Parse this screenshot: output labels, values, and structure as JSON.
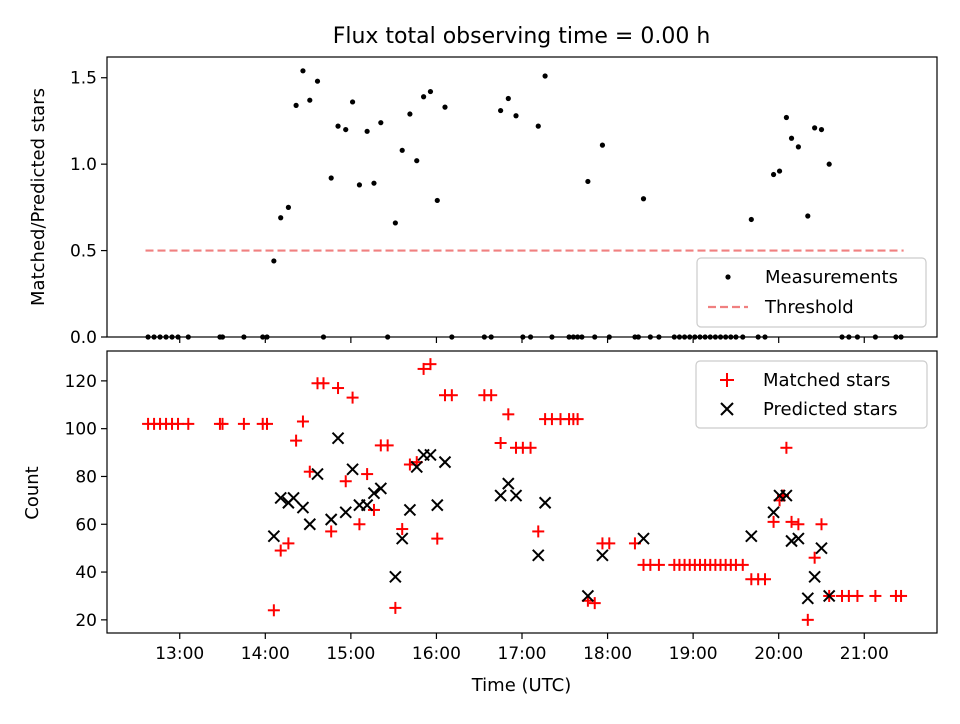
{
  "title": "Flux total observing time = 0.00 h",
  "colors": {
    "measurements": "#000000",
    "threshold": "#f08080",
    "matched": "#ff0000",
    "predicted": "#000000"
  },
  "chart_data": [
    {
      "type": "scatter",
      "panel": "top",
      "ylabel": "Matched/Predicted stars",
      "ylim": [
        0,
        1.62
      ],
      "yticks": [
        0.0,
        0.5,
        1.0,
        1.5
      ],
      "ytick_labels": [
        "0.0",
        "0.5",
        "1.0",
        "1.5"
      ],
      "xlim": [
        12.15,
        21.85
      ],
      "x_unit": "hour (UTC)",
      "grid": false,
      "legend": {
        "placement": "lower-right",
        "entries": [
          "Measurements",
          "Threshold"
        ]
      },
      "series": [
        {
          "name": "Measurements",
          "marker": "dot",
          "points": [
            [
              12.63,
              0
            ],
            [
              12.7,
              0
            ],
            [
              12.77,
              0
            ],
            [
              12.84,
              0
            ],
            [
              12.91,
              0
            ],
            [
              12.98,
              0
            ],
            [
              13.1,
              0
            ],
            [
              13.47,
              0
            ],
            [
              13.5,
              0
            ],
            [
              13.75,
              0
            ],
            [
              13.97,
              0
            ],
            [
              14.02,
              0
            ],
            [
              14.1,
              0.44
            ],
            [
              14.18,
              0.69
            ],
            [
              14.27,
              0.75
            ],
            [
              14.36,
              1.34
            ],
            [
              14.44,
              1.54
            ],
            [
              14.52,
              1.37
            ],
            [
              14.61,
              1.48
            ],
            [
              14.68,
              0
            ],
            [
              14.77,
              0.92
            ],
            [
              14.85,
              1.22
            ],
            [
              14.94,
              1.2
            ],
            [
              15.02,
              1.36
            ],
            [
              15.1,
              0.88
            ],
            [
              15.19,
              1.19
            ],
            [
              15.27,
              0.89
            ],
            [
              15.35,
              1.24
            ],
            [
              15.43,
              0
            ],
            [
              15.52,
              0.66
            ],
            [
              15.6,
              1.08
            ],
            [
              15.69,
              1.29
            ],
            [
              15.77,
              1.02
            ],
            [
              15.85,
              1.39
            ],
            [
              15.93,
              1.42
            ],
            [
              16.01,
              0.79
            ],
            [
              16.1,
              1.33
            ],
            [
              16.18,
              0
            ],
            [
              16.56,
              0
            ],
            [
              16.64,
              0
            ],
            [
              16.75,
              1.31
            ],
            [
              16.84,
              1.38
            ],
            [
              16.93,
              1.28
            ],
            [
              17.01,
              0
            ],
            [
              17.1,
              0
            ],
            [
              17.19,
              1.22
            ],
            [
              17.27,
              1.51
            ],
            [
              17.35,
              0
            ],
            [
              17.55,
              0
            ],
            [
              17.6,
              0
            ],
            [
              17.65,
              0
            ],
            [
              17.7,
              0
            ],
            [
              17.77,
              0.9
            ],
            [
              17.85,
              0
            ],
            [
              17.94,
              1.11
            ],
            [
              18.02,
              0
            ],
            [
              18.32,
              0
            ],
            [
              18.36,
              0
            ],
            [
              18.42,
              0.8
            ],
            [
              18.5,
              0
            ],
            [
              18.6,
              0
            ],
            [
              18.78,
              0
            ],
            [
              18.84,
              0
            ],
            [
              18.9,
              0
            ],
            [
              18.96,
              0
            ],
            [
              19.02,
              0
            ],
            [
              19.08,
              0
            ],
            [
              19.14,
              0
            ],
            [
              19.2,
              0
            ],
            [
              19.26,
              0
            ],
            [
              19.32,
              0
            ],
            [
              19.38,
              0
            ],
            [
              19.44,
              0
            ],
            [
              19.5,
              0
            ],
            [
              19.58,
              0
            ],
            [
              19.68,
              0.68
            ],
            [
              19.76,
              0
            ],
            [
              19.84,
              0
            ],
            [
              19.94,
              0.94
            ],
            [
              20.01,
              0.96
            ],
            [
              20.09,
              1.27
            ],
            [
              20.15,
              1.15
            ],
            [
              20.23,
              1.1
            ],
            [
              20.34,
              0.7
            ],
            [
              20.42,
              1.21
            ],
            [
              20.5,
              1.2
            ],
            [
              20.59,
              1.0
            ],
            [
              20.74,
              0
            ],
            [
              20.82,
              0
            ],
            [
              20.92,
              0
            ],
            [
              21.13,
              0
            ],
            [
              21.37,
              0
            ],
            [
              21.43,
              0
            ]
          ]
        },
        {
          "name": "Threshold",
          "style": "dashed",
          "points": [
            [
              12.6,
              0.5
            ],
            [
              21.46,
              0.5
            ]
          ]
        }
      ]
    },
    {
      "type": "scatter",
      "panel": "bottom",
      "xlabel": "Time (UTC)",
      "ylabel": "Count",
      "ylim": [
        14.5,
        132.5
      ],
      "yticks": [
        20,
        40,
        60,
        80,
        100,
        120
      ],
      "ytick_labels": [
        "20",
        "40",
        "60",
        "80",
        "100",
        "120"
      ],
      "xlim": [
        12.15,
        21.85
      ],
      "xticks": [
        13,
        14,
        15,
        16,
        17,
        18,
        19,
        20,
        21
      ],
      "xtick_labels": [
        "13:00",
        "14:00",
        "15:00",
        "16:00",
        "17:00",
        "18:00",
        "19:00",
        "20:00",
        "21:00"
      ],
      "grid": false,
      "legend": {
        "placement": "upper-right",
        "entries": [
          "Matched stars",
          "Predicted stars"
        ]
      },
      "series": [
        {
          "name": "Matched stars",
          "marker": "plus",
          "points": [
            [
              12.63,
              102
            ],
            [
              12.7,
              102
            ],
            [
              12.77,
              102
            ],
            [
              12.84,
              102
            ],
            [
              12.91,
              102
            ],
            [
              12.98,
              102
            ],
            [
              13.1,
              102
            ],
            [
              13.47,
              102
            ],
            [
              13.5,
              102
            ],
            [
              13.75,
              102
            ],
            [
              13.97,
              102
            ],
            [
              14.02,
              102
            ],
            [
              14.1,
              24
            ],
            [
              14.18,
              49
            ],
            [
              14.27,
              52
            ],
            [
              14.36,
              95
            ],
            [
              14.44,
              103
            ],
            [
              14.52,
              82
            ],
            [
              14.61,
              119
            ],
            [
              14.68,
              119
            ],
            [
              14.77,
              57
            ],
            [
              14.85,
              117
            ],
            [
              14.94,
              78
            ],
            [
              15.02,
              113
            ],
            [
              15.1,
              60
            ],
            [
              15.19,
              81
            ],
            [
              15.27,
              66
            ],
            [
              15.35,
              93
            ],
            [
              15.43,
              93
            ],
            [
              15.52,
              25
            ],
            [
              15.6,
              58
            ],
            [
              15.69,
              85
            ],
            [
              15.77,
              86
            ],
            [
              15.85,
              125
            ],
            [
              15.93,
              127
            ],
            [
              16.01,
              54
            ],
            [
              16.1,
              114
            ],
            [
              16.18,
              114
            ],
            [
              16.56,
              114
            ],
            [
              16.64,
              114
            ],
            [
              16.75,
              94
            ],
            [
              16.84,
              106
            ],
            [
              16.93,
              92
            ],
            [
              17.01,
              92
            ],
            [
              17.1,
              92
            ],
            [
              17.19,
              57
            ],
            [
              17.27,
              104
            ],
            [
              17.35,
              104
            ],
            [
              17.45,
              104
            ],
            [
              17.55,
              104
            ],
            [
              17.6,
              104
            ],
            [
              17.65,
              104
            ],
            [
              17.77,
              28
            ],
            [
              17.85,
              27
            ],
            [
              17.94,
              52
            ],
            [
              18.02,
              52
            ],
            [
              18.32,
              52
            ],
            [
              18.42,
              43
            ],
            [
              18.5,
              43
            ],
            [
              18.6,
              43
            ],
            [
              18.78,
              43
            ],
            [
              18.84,
              43
            ],
            [
              18.9,
              43
            ],
            [
              18.96,
              43
            ],
            [
              19.02,
              43
            ],
            [
              19.08,
              43
            ],
            [
              19.14,
              43
            ],
            [
              19.2,
              43
            ],
            [
              19.26,
              43
            ],
            [
              19.32,
              43
            ],
            [
              19.38,
              43
            ],
            [
              19.44,
              43
            ],
            [
              19.5,
              43
            ],
            [
              19.58,
              43
            ],
            [
              19.68,
              37
            ],
            [
              19.76,
              37
            ],
            [
              19.84,
              37
            ],
            [
              19.94,
              61
            ],
            [
              20.01,
              70
            ],
            [
              20.05,
              72
            ],
            [
              20.09,
              92
            ],
            [
              20.15,
              61
            ],
            [
              20.23,
              60
            ],
            [
              20.34,
              20
            ],
            [
              20.42,
              46
            ],
            [
              20.5,
              60
            ],
            [
              20.59,
              30
            ],
            [
              20.74,
              30
            ],
            [
              20.82,
              30
            ],
            [
              20.92,
              30
            ],
            [
              21.13,
              30
            ],
            [
              21.37,
              30
            ],
            [
              21.43,
              30
            ]
          ]
        },
        {
          "name": "Predicted stars",
          "marker": "cross",
          "points": [
            [
              14.1,
              55
            ],
            [
              14.18,
              71
            ],
            [
              14.27,
              69
            ],
            [
              14.33,
              71
            ],
            [
              14.44,
              67
            ],
            [
              14.52,
              60
            ],
            [
              14.61,
              81
            ],
            [
              14.77,
              62
            ],
            [
              14.85,
              96
            ],
            [
              14.94,
              65
            ],
            [
              15.02,
              83
            ],
            [
              15.1,
              68
            ],
            [
              15.19,
              68
            ],
            [
              15.27,
              73
            ],
            [
              15.35,
              75
            ],
            [
              15.52,
              38
            ],
            [
              15.6,
              54
            ],
            [
              15.69,
              66
            ],
            [
              15.77,
              84
            ],
            [
              15.85,
              89
            ],
            [
              15.93,
              89
            ],
            [
              16.01,
              68
            ],
            [
              16.1,
              86
            ],
            [
              16.75,
              72
            ],
            [
              16.84,
              77
            ],
            [
              16.93,
              72
            ],
            [
              17.19,
              47
            ],
            [
              17.27,
              69
            ],
            [
              17.77,
              30
            ],
            [
              17.94,
              47
            ],
            [
              18.42,
              54
            ],
            [
              19.68,
              55
            ],
            [
              19.94,
              65
            ],
            [
              20.01,
              72
            ],
            [
              20.09,
              72
            ],
            [
              20.15,
              53
            ],
            [
              20.23,
              54
            ],
            [
              20.34,
              29
            ],
            [
              20.42,
              38
            ],
            [
              20.5,
              50
            ],
            [
              20.59,
              30
            ]
          ]
        }
      ]
    }
  ]
}
